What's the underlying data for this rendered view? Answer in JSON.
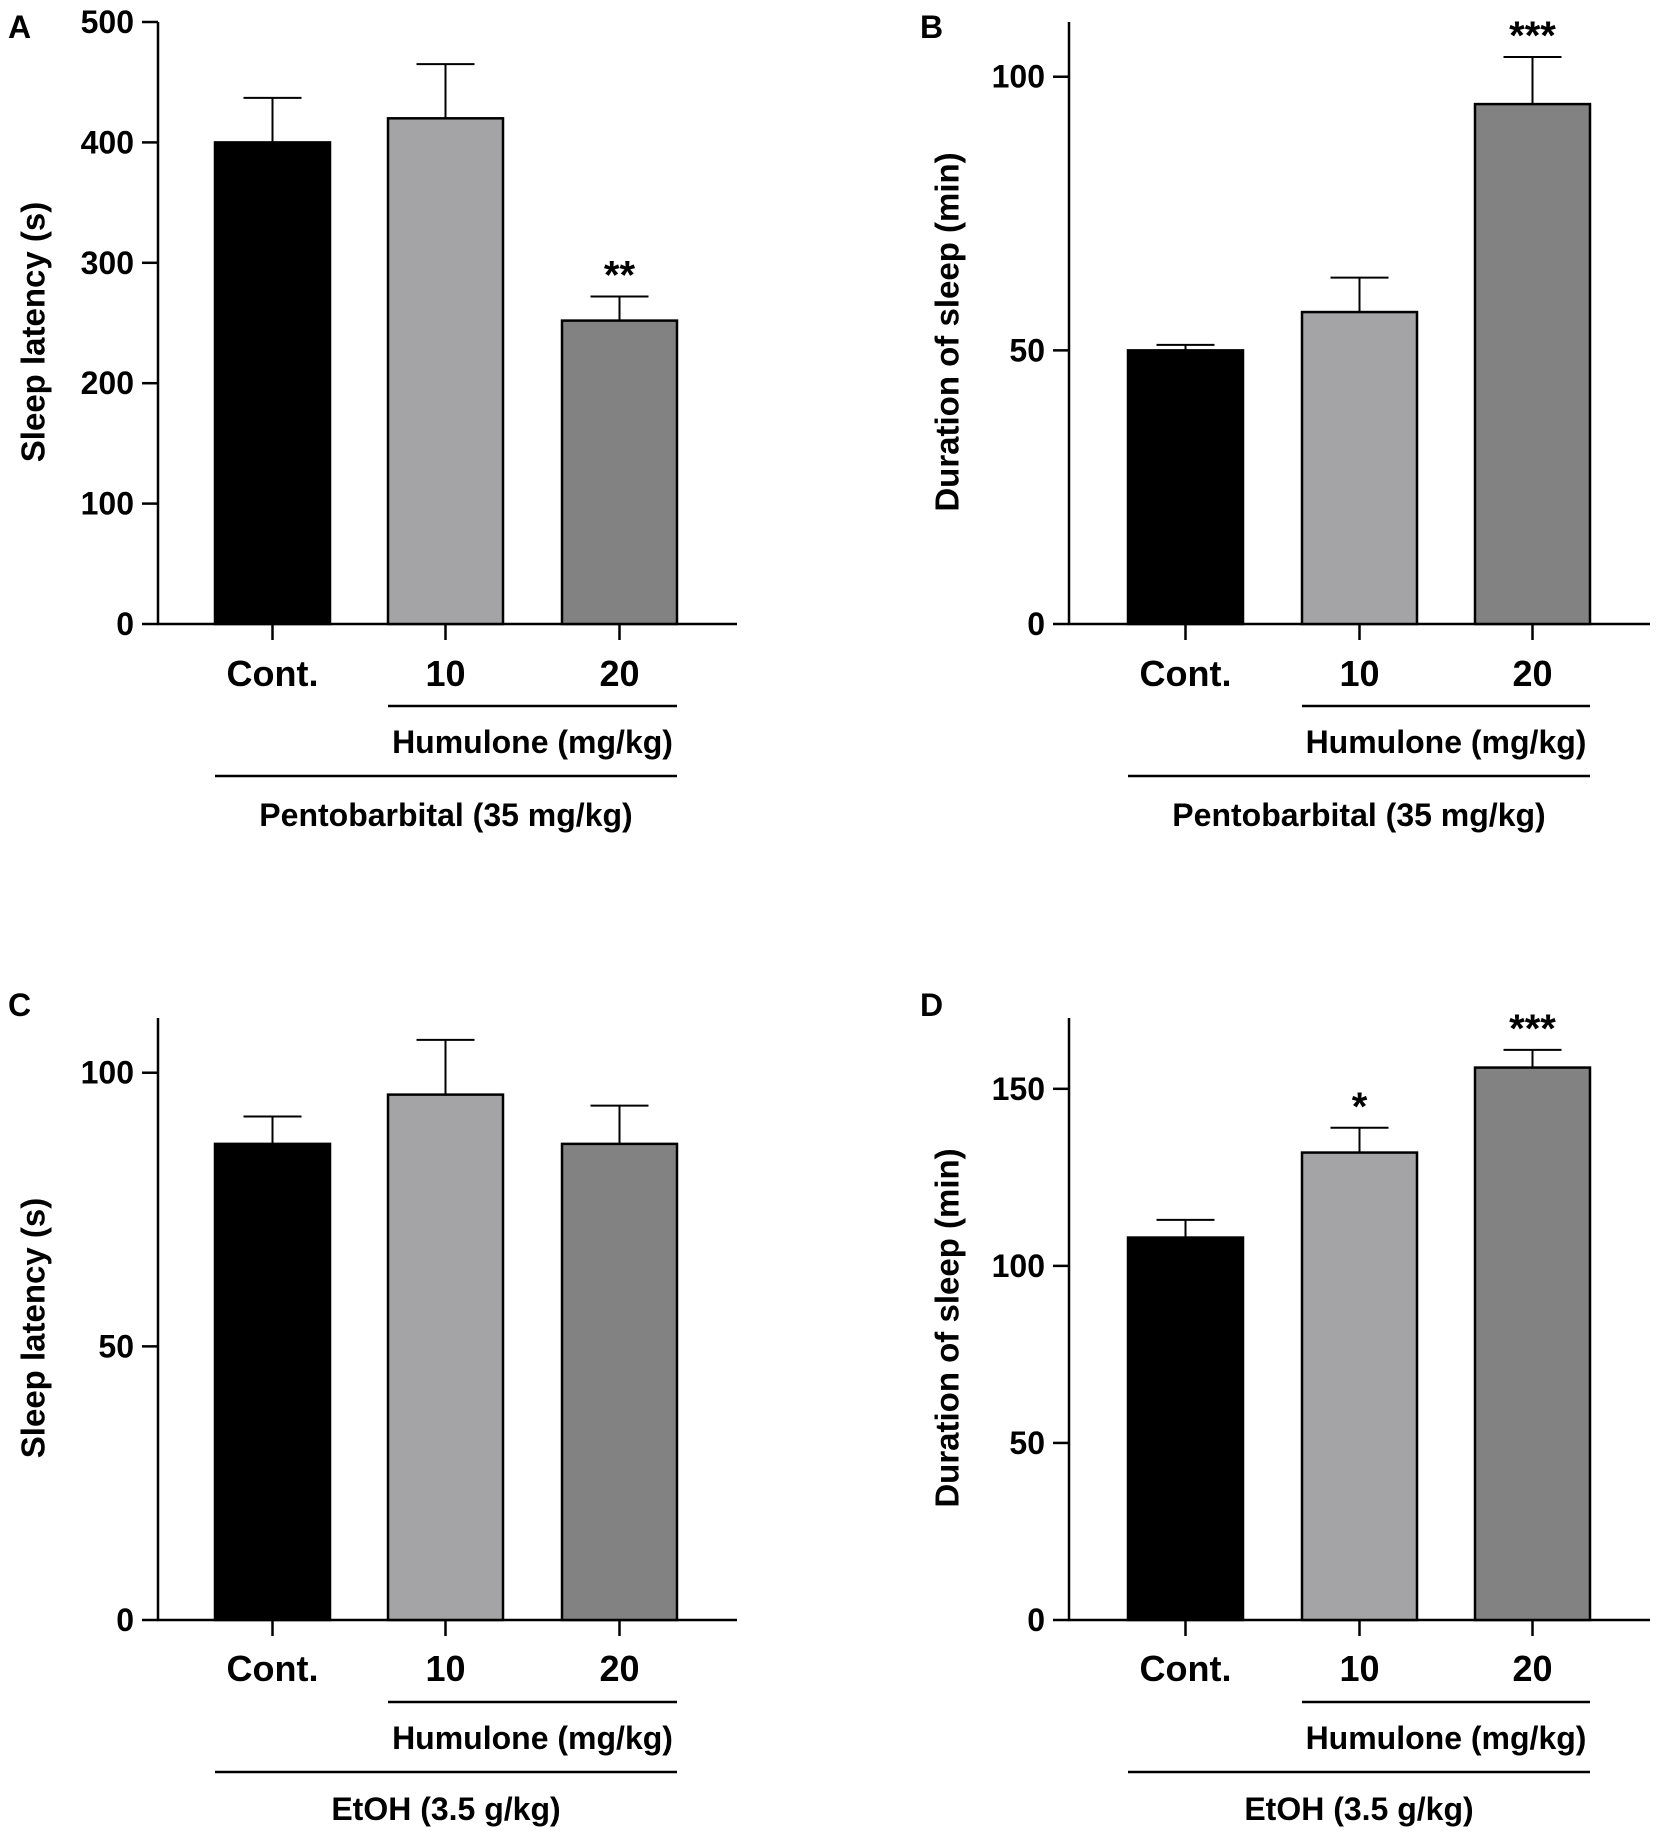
{
  "colors": {
    "bar_control": "#000000",
    "bar_dose10": "#a4a4a6",
    "bar_dose20": "#828282",
    "axis": "#000000"
  },
  "chart_data": [
    {
      "panel": "A",
      "type": "bar",
      "categories": [
        "Cont.",
        "10",
        "20"
      ],
      "values": [
        400,
        420,
        252
      ],
      "errors": [
        37,
        45,
        20
      ],
      "significance": [
        "",
        "",
        "**"
      ],
      "ylabel": "Sleep latency (s)",
      "ylim": [
        0,
        500
      ],
      "yticks": [
        0,
        100,
        200,
        300,
        400,
        500
      ],
      "group_label": "Humulone (mg/kg)",
      "treatment_label": "Pentobarbital (35 mg/kg)"
    },
    {
      "panel": "B",
      "type": "bar",
      "categories": [
        "Cont.",
        "10",
        "20"
      ],
      "values": [
        50,
        57,
        95
      ],
      "errors": [
        1,
        6.3,
        8.6
      ],
      "significance": [
        "",
        "",
        "***"
      ],
      "ylabel": "Duration of sleep (min)",
      "ylim": [
        0,
        110
      ],
      "yticks": [
        0,
        50,
        100
      ],
      "group_label": "Humulone (mg/kg)",
      "treatment_label": "Pentobarbital (35 mg/kg)"
    },
    {
      "panel": "C",
      "type": "bar",
      "categories": [
        "Cont.",
        "10",
        "20"
      ],
      "values": [
        87,
        96,
        87
      ],
      "errors": [
        5,
        10,
        7
      ],
      "significance": [
        "",
        "",
        ""
      ],
      "ylabel": "Sleep latency (s)",
      "ylim": [
        0,
        110
      ],
      "yticks": [
        0,
        50,
        100
      ],
      "group_label": "Humulone (mg/kg)",
      "treatment_label": "EtOH (3.5 g/kg)"
    },
    {
      "panel": "D",
      "type": "bar",
      "categories": [
        "Cont.",
        "10",
        "20"
      ],
      "values": [
        108,
        132,
        156
      ],
      "errors": [
        5,
        7,
        5
      ],
      "significance": [
        "",
        "*",
        "***"
      ],
      "ylabel": "Duration of sleep (min)",
      "ylim": [
        0,
        170
      ],
      "yticks": [
        0,
        50,
        100,
        150
      ],
      "group_label": "Humulone (mg/kg)",
      "treatment_label": "EtOH (3.5 g/kg)"
    }
  ]
}
